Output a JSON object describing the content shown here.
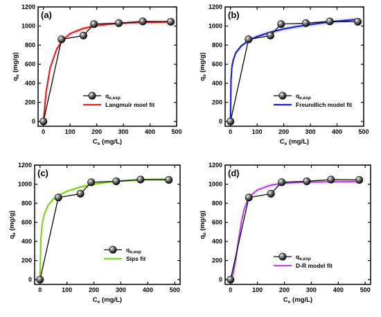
{
  "chart_data": [
    {
      "type": "line",
      "panel_label": "(a)",
      "xlabel": {
        "main": "C",
        "sub": "e",
        "rest": " (mg/L)"
      },
      "ylabel": {
        "main": "q",
        "sub": "e",
        "rest": " (mg/g)"
      },
      "xlim": [
        -20,
        500
      ],
      "ylim": [
        -50,
        1200
      ],
      "xticks": [
        "0",
        "100",
        "200",
        "300",
        "400",
        "500"
      ],
      "yticks": [
        "0",
        "200",
        "400",
        "600",
        "800",
        "1000",
        "1200"
      ],
      "series": [
        {
          "name": {
            "main": "q",
            "sub": "e,exp"
          },
          "kind": "markers-line",
          "x": [
            0,
            68,
            150,
            190,
            283,
            373,
            478
          ],
          "y": [
            0,
            860,
            900,
            1020,
            1030,
            1048,
            1045
          ]
        },
        {
          "name": {
            "main": "Langmuir moel fit",
            "sub": ""
          },
          "kind": "fit",
          "x": [
            0,
            10,
            25,
            50,
            75,
            100,
            150,
            200,
            250,
            300,
            350,
            400,
            450,
            480
          ],
          "y": [
            0,
            310,
            560,
            760,
            860,
            920,
            975,
            1005,
            1020,
            1030,
            1036,
            1040,
            1043,
            1045
          ],
          "color": "#e8201e"
        }
      ]
    },
    {
      "type": "line",
      "panel_label": "(b)",
      "xlabel": {
        "main": "C",
        "sub": "e",
        "rest": " (mg/L)"
      },
      "ylabel": {
        "main": "q",
        "sub": "e",
        "rest": " (mg/g)"
      },
      "xlim": [
        -20,
        500
      ],
      "ylim": [
        -50,
        1200
      ],
      "xticks": [
        "0",
        "100",
        "200",
        "300",
        "400",
        "500"
      ],
      "yticks": [
        "0",
        "200",
        "400",
        "600",
        "800",
        "1000",
        "1200"
      ],
      "series": [
        {
          "name": {
            "main": "q",
            "sub": "e,exp"
          },
          "kind": "markers-line",
          "x": [
            0,
            68,
            150,
            190,
            283,
            373,
            478
          ],
          "y": [
            0,
            860,
            900,
            1020,
            1030,
            1048,
            1045
          ]
        },
        {
          "name": {
            "main": "Freundlich model fit",
            "sub": ""
          },
          "kind": "fit",
          "x": [
            0,
            2,
            5,
            10,
            20,
            40,
            70,
            100,
            150,
            200,
            250,
            300,
            350,
            400,
            450,
            480
          ],
          "y": [
            0,
            430,
            560,
            640,
            720,
            790,
            850,
            890,
            935,
            970,
            995,
            1015,
            1035,
            1050,
            1063,
            1070
          ],
          "color": "#1a1fd6"
        }
      ]
    },
    {
      "type": "line",
      "panel_label": "(c)",
      "xlabel": {
        "main": "C",
        "sub": "e",
        "rest": " (mg/L)"
      },
      "ylabel": {
        "main": "q",
        "sub": "e",
        "rest": " (mg/g)"
      },
      "xlim": [
        -20,
        520
      ],
      "ylim": [
        -50,
        1200
      ],
      "xticks": [
        "0",
        "100",
        "200",
        "300",
        "400",
        "500"
      ],
      "yticks": [
        "0",
        "200",
        "400",
        "600",
        "800",
        "1000",
        "1200"
      ],
      "series": [
        {
          "name": {
            "main": "q",
            "sub": "e,exp"
          },
          "kind": "markers-line",
          "x": [
            0,
            68,
            150,
            190,
            283,
            373,
            478
          ],
          "y": [
            0,
            860,
            900,
            1020,
            1030,
            1048,
            1045
          ]
        },
        {
          "name": {
            "main": "Sips fit",
            "sub": ""
          },
          "kind": "fit",
          "x": [
            0,
            3,
            8,
            15,
            30,
            50,
            75,
            100,
            150,
            200,
            250,
            300,
            350,
            400,
            450,
            480
          ],
          "y": [
            0,
            420,
            580,
            680,
            780,
            845,
            890,
            925,
            970,
            1000,
            1020,
            1033,
            1042,
            1048,
            1052,
            1054
          ],
          "color": "#7ed321"
        }
      ]
    },
    {
      "type": "line",
      "panel_label": "(d)",
      "xlabel": {
        "main": "C",
        "sub": "e",
        "rest": " (mg/L)"
      },
      "ylabel": {
        "main": "q",
        "sub": "e",
        "rest": " (mg/g)"
      },
      "xlim": [
        -20,
        520
      ],
      "ylim": [
        -50,
        1200
      ],
      "xticks": [
        "0",
        "100",
        "200",
        "300",
        "400",
        "500"
      ],
      "yticks": [
        "0",
        "200",
        "400",
        "600",
        "800",
        "1000",
        "1200"
      ],
      "series": [
        {
          "name": {
            "main": "q",
            "sub": "e,exp"
          },
          "kind": "markers-line",
          "x": [
            0,
            68,
            150,
            190,
            283,
            373,
            478
          ],
          "y": [
            0,
            860,
            900,
            1020,
            1030,
            1048,
            1045
          ]
        },
        {
          "name": {
            "main": "D-R model fit",
            "sub": ""
          },
          "kind": "fit",
          "x": [
            0,
            10,
            20,
            30,
            40,
            50,
            60,
            75,
            100,
            150,
            200,
            250,
            300,
            400,
            480
          ],
          "y": [
            0,
            60,
            220,
            420,
            600,
            730,
            810,
            880,
            940,
            990,
            1010,
            1018,
            1022,
            1026,
            1027
          ],
          "color": "#b44ae0"
        }
      ]
    }
  ]
}
